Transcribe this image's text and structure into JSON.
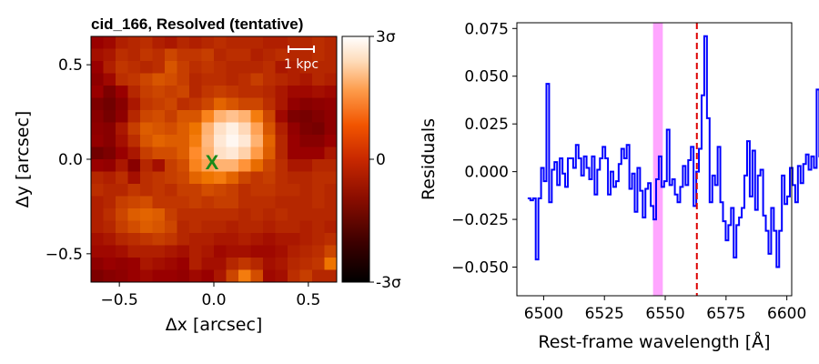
{
  "chart_data": [
    {
      "type": "heatmap",
      "title": "cid_166, Resolved (tentative)",
      "xlabel": "Δx [arcsec]",
      "ylabel": "Δy [arcsec]",
      "xlim": [
        -0.65,
        0.65
      ],
      "ylim": [
        -0.65,
        0.65
      ],
      "xticks": [
        -0.5,
        0.0,
        0.5
      ],
      "xtick_labels": [
        "−0.5",
        "0.0",
        "0.5"
      ],
      "yticks": [
        -0.5,
        0.0,
        0.5
      ],
      "ytick_labels": [
        "−0.5",
        "0.0",
        "0.5"
      ],
      "colorbar": {
        "range": [
          -3,
          3
        ],
        "ticks": [
          3,
          0,
          -3
        ],
        "tick_labels": [
          "3σ",
          "0",
          "-3σ"
        ],
        "colormap": "gist_heat"
      },
      "center_marker": {
        "label": "X",
        "x": 0.0,
        "y": 0.0,
        "color": "#1a8a1a"
      },
      "scalebar": {
        "label": "1 kpc",
        "color": "#ffffff"
      },
      "grid": false,
      "values": [
        [
          -0.3,
          -0.2,
          0.1,
          0.2,
          0.3,
          0.1,
          0.0,
          0.2,
          0.1,
          0.2,
          0.3,
          0.2,
          0.2,
          0.2,
          0.1,
          0.1,
          0.2,
          0.2,
          0.3,
          0.2
        ],
        [
          -0.1,
          0.0,
          0.3,
          0.2,
          0.4,
          0.3,
          0.6,
          0.4,
          0.4,
          0.5,
          0.2,
          0.3,
          0.3,
          0.1,
          0.2,
          0.3,
          0.2,
          0.2,
          0.3,
          0.2
        ],
        [
          -0.3,
          0.1,
          0.4,
          0.3,
          0.2,
          0.3,
          0.8,
          0.5,
          0.3,
          0.4,
          0.3,
          0.2,
          0.2,
          0.2,
          0.3,
          0.0,
          0.1,
          0.2,
          0.2,
          0.2
        ],
        [
          -0.5,
          -0.2,
          0.3,
          0.4,
          0.6,
          0.8,
          0.7,
          0.5,
          0.2,
          0.3,
          0.3,
          0.2,
          0.3,
          0.5,
          0.3,
          0.2,
          0.1,
          0.0,
          0.2,
          0.1
        ],
        [
          -0.3,
          -0.8,
          -0.3,
          0.2,
          0.5,
          0.6,
          0.5,
          0.6,
          0.2,
          0.4,
          0.5,
          0.4,
          0.3,
          0.3,
          0.2,
          0.0,
          -0.2,
          -0.2,
          -0.1,
          -0.2
        ],
        [
          -0.8,
          -1.0,
          -0.6,
          0.0,
          0.4,
          0.5,
          0.6,
          0.3,
          0.4,
          0.6,
          1.0,
          0.8,
          0.6,
          0.6,
          0.3,
          0.0,
          -0.4,
          -0.6,
          -0.5,
          -0.4
        ],
        [
          -0.6,
          -0.9,
          -0.5,
          0.2,
          0.6,
          0.7,
          0.5,
          0.8,
          0.8,
          1.4,
          2.0,
          2.2,
          2.0,
          1.3,
          0.6,
          -0.2,
          -0.8,
          -0.9,
          -0.7,
          -0.5
        ],
        [
          -0.5,
          -0.6,
          0.0,
          0.5,
          0.9,
          0.8,
          0.7,
          0.9,
          1.2,
          2.0,
          2.6,
          2.8,
          2.5,
          1.8,
          0.8,
          0.1,
          -0.4,
          -0.8,
          -0.9,
          -0.5
        ],
        [
          -0.4,
          -0.6,
          -0.1,
          0.3,
          0.8,
          1.0,
          0.9,
          0.9,
          1.3,
          2.1,
          2.7,
          2.9,
          2.7,
          2.0,
          1.0,
          0.2,
          -0.3,
          -0.6,
          -0.6,
          -0.3
        ],
        [
          -1.0,
          -0.8,
          -0.3,
          0.0,
          0.5,
          0.7,
          0.7,
          0.9,
          1.5,
          2.0,
          2.6,
          2.7,
          2.4,
          1.7,
          0.9,
          0.2,
          -0.3,
          -0.3,
          -0.3,
          0.0
        ],
        [
          -0.3,
          -0.4,
          0.0,
          -0.6,
          0.2,
          -0.1,
          0.5,
          0.7,
          1.4,
          1.8,
          2.0,
          2.0,
          1.6,
          1.1,
          0.6,
          0.3,
          0.0,
          0.0,
          0.2,
          0.2
        ],
        [
          0.2,
          0.1,
          0.3,
          -0.1,
          0.3,
          0.4,
          0.5,
          0.6,
          1.0,
          1.2,
          1.3,
          1.0,
          0.6,
          0.4,
          0.5,
          0.3,
          0.2,
          0.2,
          0.3,
          0.3
        ],
        [
          0.3,
          0.2,
          0.2,
          0.4,
          0.3,
          0.4,
          0.3,
          0.5,
          0.5,
          0.7,
          0.6,
          0.5,
          0.3,
          0.4,
          0.4,
          0.3,
          0.3,
          0.2,
          0.3,
          0.2
        ],
        [
          0.1,
          0.2,
          0.5,
          0.6,
          0.7,
          0.4,
          0.4,
          0.4,
          0.5,
          0.4,
          0.5,
          0.5,
          0.3,
          0.3,
          0.3,
          0.2,
          0.2,
          0.2,
          0.3,
          0.2
        ],
        [
          0.1,
          0.3,
          0.6,
          0.9,
          1.0,
          0.9,
          0.5,
          0.3,
          0.3,
          0.3,
          0.3,
          0.3,
          0.2,
          0.3,
          0.2,
          0.3,
          0.2,
          0.2,
          0.2,
          0.2
        ],
        [
          0.1,
          0.2,
          0.5,
          0.7,
          0.9,
          0.8,
          0.6,
          0.2,
          0.3,
          0.2,
          0.2,
          0.1,
          0.2,
          0.2,
          0.1,
          0.2,
          0.2,
          0.1,
          0.2,
          0.1
        ],
        [
          -0.1,
          0.0,
          0.2,
          0.3,
          0.4,
          0.5,
          0.4,
          0.2,
          0.1,
          0.1,
          0.0,
          0.0,
          0.1,
          0.0,
          -0.1,
          0.0,
          0.0,
          0.1,
          0.2,
          0.3
        ],
        [
          -0.2,
          -0.2,
          -0.1,
          0.1,
          0.1,
          0.1,
          0.0,
          -0.1,
          0.1,
          0.0,
          -0.2,
          -0.1,
          -0.1,
          -0.2,
          -0.2,
          -0.1,
          0.1,
          0.2,
          0.3,
          0.6
        ],
        [
          -0.5,
          -0.3,
          -0.4,
          -0.3,
          0.0,
          -0.1,
          -0.2,
          -0.3,
          0.1,
          -0.1,
          -0.1,
          0.2,
          0.4,
          0.2,
          -0.1,
          0.0,
          0.2,
          0.3,
          0.4,
          1.2
        ],
        [
          -0.8,
          -0.6,
          -0.5,
          -0.3,
          -0.2,
          -0.3,
          -0.3,
          -0.4,
          -0.2,
          -0.3,
          0.0,
          0.6,
          1.3,
          0.7,
          -0.2,
          -0.1,
          0.3,
          0.5,
          0.2,
          0.2
        ]
      ]
    },
    {
      "type": "line",
      "title": "",
      "xlabel": "Rest-frame wavelength [Å]",
      "ylabel": "Residuals",
      "xlim": [
        6489,
        6602
      ],
      "ylim": [
        -0.065,
        0.078
      ],
      "xticks": [
        6500,
        6525,
        6550,
        6575,
        6600
      ],
      "xtick_labels": [
        "6500",
        "6525",
        "6550",
        "6575",
        "6600"
      ],
      "yticks": [
        0.075,
        0.05,
        0.025,
        0.0,
        -0.025,
        -0.05
      ],
      "ytick_labels": [
        "0.075",
        "0.050",
        "0.025",
        "0.000",
        "−0.025",
        "−0.050"
      ],
      "grid": false,
      "drawstyle": "steps-mid",
      "series": [
        {
          "color": "#0000ff",
          "x_start": 6494.0,
          "x_step": 1.1,
          "values": [
            -0.014,
            -0.015,
            -0.014,
            -0.046,
            -0.014,
            0.002,
            -0.005,
            0.046,
            -0.016,
            0.001,
            0.005,
            -0.007,
            0.007,
            -0.001,
            -0.008,
            0.007,
            0.007,
            0.002,
            0.014,
            0.007,
            -0.002,
            0.008,
            0.002,
            -0.004,
            0.008,
            -0.012,
            0.001,
            0.007,
            0.013,
            0.007,
            -0.012,
            0.0,
            -0.008,
            -0.005,
            0.004,
            0.012,
            0.007,
            0.014,
            -0.009,
            -0.001,
            -0.021,
            0.002,
            -0.01,
            -0.024,
            -0.009,
            -0.006,
            -0.018,
            -0.025,
            -0.004,
            0.008,
            -0.008,
            -0.005,
            0.022,
            -0.007,
            -0.004,
            -0.012,
            -0.016,
            -0.008,
            0.003,
            -0.007,
            0.006,
            0.013,
            -0.018,
            0.0,
            0.012,
            0.04,
            0.071,
            0.028,
            -0.016,
            -0.002,
            -0.007,
            0.013,
            -0.016,
            -0.026,
            -0.036,
            -0.028,
            -0.019,
            -0.045,
            -0.028,
            -0.024,
            -0.019,
            -0.002,
            0.016,
            -0.013,
            0.011,
            -0.02,
            -0.002,
            0.001,
            -0.023,
            -0.031,
            -0.043,
            -0.019,
            -0.031,
            -0.05,
            -0.031,
            -0.002,
            -0.017,
            -0.013,
            0.002,
            -0.007,
            -0.016,
            0.003,
            -0.006,
            0.004,
            0.009,
            0.001,
            0.008,
            0.002,
            0.043,
            0.008,
            0.013,
            -0.005,
            -0.017,
            0.007,
            -0.002,
            0.004,
            0.013,
            0.008,
            0.007,
            -0.021,
            -0.024,
            -0.03,
            -0.032,
            0.0,
            -0.017,
            -0.024,
            -0.015,
            0.003,
            0.021,
            -0.012,
            0.001,
            0.037,
            0.009,
            0.014,
            0.007,
            0.002,
            0.004,
            0.014,
            0.038,
            0.009,
            -0.024,
            -0.01,
            0.04,
            0.017,
            -0.007,
            0.012,
            -0.034,
            0.004,
            0.023,
            0.015,
            -0.006,
            0.017,
            0.001,
            -0.005,
            0.002,
            0.009,
            0.016,
            0.001,
            0.003,
            0.004,
            0.001,
            0.005,
            0.012,
            0.002,
            0.025,
            0.009,
            0.017,
            0.031,
            0.019,
            0.021
          ]
        }
      ],
      "shaded_band": {
        "x0": 6545.0,
        "x1": 6549.0,
        "color": "#ff88ff"
      },
      "reference_line": {
        "x": 6563.0,
        "color": "#dd0000",
        "style": "dashed"
      }
    }
  ]
}
